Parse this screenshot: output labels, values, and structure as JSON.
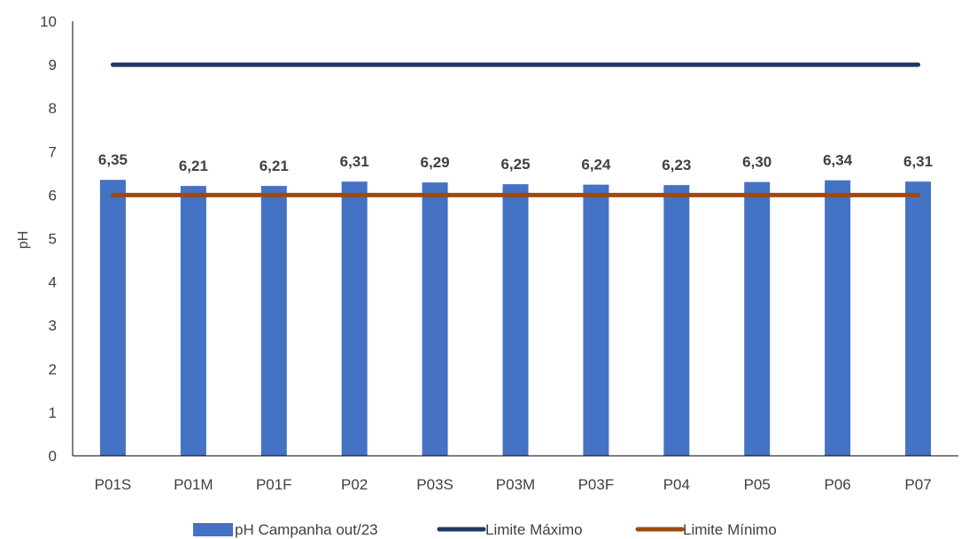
{
  "chart_data": {
    "type": "bar",
    "title": "",
    "xlabel": "",
    "ylabel": "pH",
    "ylim": [
      0,
      10
    ],
    "yticks": [
      "0",
      "1",
      "2",
      "3",
      "4",
      "5",
      "6",
      "7",
      "8",
      "9",
      "10"
    ],
    "grid": false,
    "legend_position": "bottom",
    "categories": [
      "P01S",
      "P01M",
      "P01F",
      "P02",
      "P03S",
      "P03M",
      "P03F",
      "P04",
      "P05",
      "P06",
      "P07"
    ],
    "series": [
      {
        "name": "pH Campanha out/23",
        "kind": "bar",
        "color": "#4472C4",
        "values": [
          6.35,
          6.21,
          6.21,
          6.31,
          6.29,
          6.25,
          6.24,
          6.23,
          6.3,
          6.34,
          6.31
        ],
        "labels": [
          "6,35",
          "6,21",
          "6,21",
          "6,31",
          "6,29",
          "6,25",
          "6,24",
          "6,23",
          "6,30",
          "6,34",
          "6,31"
        ]
      },
      {
        "name": "Limite Máximo",
        "kind": "line",
        "color": "#1F3864",
        "values": [
          9,
          9,
          9,
          9,
          9,
          9,
          9,
          9,
          9,
          9,
          9
        ]
      },
      {
        "name": "Limite Mínimo",
        "kind": "line",
        "color": "#A0490F",
        "values": [
          6,
          6,
          6,
          6,
          6,
          6,
          6,
          6,
          6,
          6,
          6
        ]
      }
    ]
  }
}
